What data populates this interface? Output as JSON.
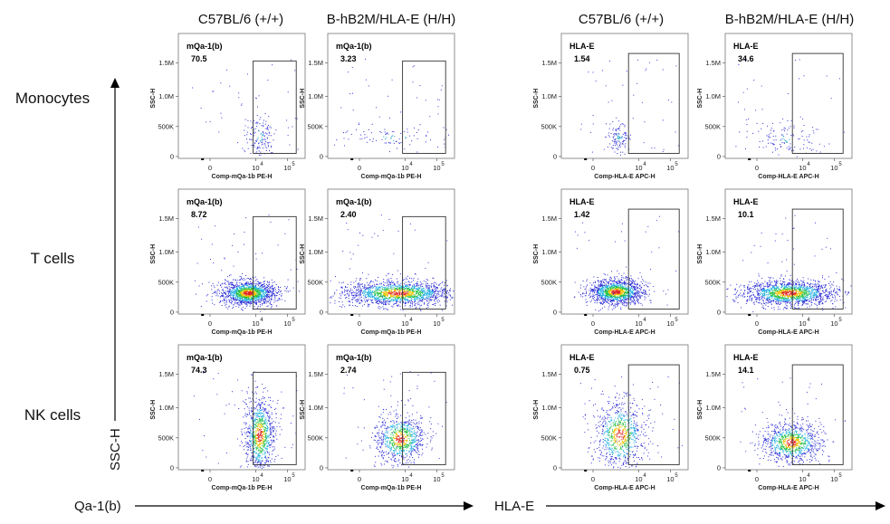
{
  "columns": [
    "C57BL/6 (+/+)",
    "B-hB2M/HLA-E (H/H)",
    "C57BL/6 (+/+)",
    "B-hB2M/HLA-E (H/H)"
  ],
  "rows": [
    "Monocytes",
    "T cells",
    "NK cells"
  ],
  "y_axis_big_label": "SSC-H",
  "x_axis_big_labels": [
    "Qa-1(b)",
    "HLA-E"
  ],
  "chart_data": {
    "type": "scatter",
    "y_ticks": [
      "0",
      "500K",
      "1.0M",
      "1.5M"
    ],
    "y_label": "SSC-H",
    "x_ticks": [
      "0",
      "10",
      "10"
    ],
    "x_tick_exponents": [
      "",
      "4",
      "5"
    ],
    "panels": [
      {
        "row": "Monocytes",
        "column": "C57BL/6 (+/+)",
        "marker": "mQa-1(b)",
        "percent": "70.5",
        "x_label": "Comp-mQa-1b PE-H"
      },
      {
        "row": "Monocytes",
        "column": "B-hB2M/HLA-E (H/H)",
        "marker": "mQa-1(b)",
        "percent": "3.23",
        "x_label": "Comp-mQa-1b PE-H"
      },
      {
        "row": "Monocytes",
        "column": "C57BL/6 (+/+)",
        "marker": "HLA-E",
        "percent": "1.54",
        "x_label": "Comp-HLA-E APC-H"
      },
      {
        "row": "Monocytes",
        "column": "B-hB2M/HLA-E (H/H)",
        "marker": "HLA-E",
        "percent": "34.6",
        "x_label": "Comp-HLA-E APC-H"
      },
      {
        "row": "T cells",
        "column": "C57BL/6 (+/+)",
        "marker": "mQa-1(b)",
        "percent": "8.72",
        "x_label": "Comp-mQa-1b PE-H"
      },
      {
        "row": "T cells",
        "column": "B-hB2M/HLA-E (H/H)",
        "marker": "mQa-1(b)",
        "percent": "2.40",
        "x_label": "Comp-mQa-1b PE-H"
      },
      {
        "row": "T cells",
        "column": "C57BL/6 (+/+)",
        "marker": "HLA-E",
        "percent": "1.42",
        "x_label": "Comp-HLA-E APC-H"
      },
      {
        "row": "T cells",
        "column": "B-hB2M/HLA-E (H/H)",
        "marker": "HLA-E",
        "percent": "10.1",
        "x_label": "Comp-HLA-E APC-H"
      },
      {
        "row": "NK cells",
        "column": "C57BL/6 (+/+)",
        "marker": "mQa-1(b)",
        "percent": "74.3",
        "x_label": "Comp-mQa-1b PE-H"
      },
      {
        "row": "NK cells",
        "column": "B-hB2M/HLA-E (H/H)",
        "marker": "mQa-1(b)",
        "percent": "2.74",
        "x_label": "Comp-mQa-1b PE-H"
      },
      {
        "row": "NK cells",
        "column": "C57BL/6 (+/+)",
        "marker": "HLA-E",
        "percent": "0.75",
        "x_label": "Comp-HLA-E APC-H"
      },
      {
        "row": "NK cells",
        "column": "B-hB2M/HLA-E (H/H)",
        "marker": "HLA-E",
        "percent": "14.1",
        "x_label": "Comp-HLA-E APC-H"
      }
    ]
  }
}
